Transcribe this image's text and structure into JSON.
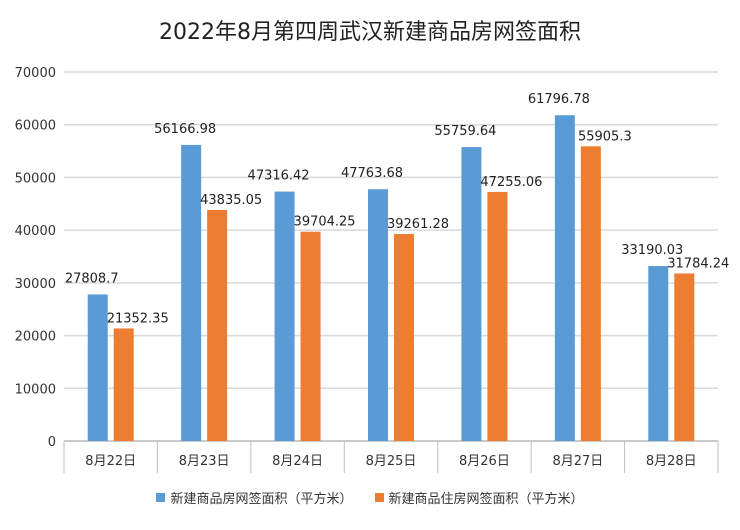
{
  "chart_data": {
    "type": "bar",
    "title": "2022年8月第四周武汉新建商品房网签面积",
    "categories": [
      "8月22日",
      "8月23日",
      "8月24日",
      "8月25日",
      "8月26日",
      "8月27日",
      "8月28日"
    ],
    "series": [
      {
        "name": "新建商品房网签面积（平方米）",
        "color": "#5b9bd5",
        "values": [
          27808.7,
          56166.98,
          47316.42,
          47763.68,
          55759.64,
          61796.78,
          33190.03
        ],
        "labels": [
          "27808.7",
          "56166.98",
          "47316.42",
          "47763.68",
          "55759.64",
          "61796.78",
          "33190.03"
        ]
      },
      {
        "name": "新建商品住房网签面积（平方米）",
        "color": "#ed7d31",
        "values": [
          21352.35,
          43835.05,
          39704.25,
          39261.28,
          47255.06,
          55905.3,
          31784.24
        ],
        "labels": [
          "21352.35",
          "43835.05",
          "39704.25",
          "39261.28",
          "47255.06",
          "55905.3",
          "31784.24"
        ]
      }
    ],
    "yticks": [
      "0",
      "10000",
      "20000",
      "30000",
      "40000",
      "50000",
      "60000",
      "70000"
    ],
    "ylim": [
      0,
      70000
    ],
    "grid": true,
    "legend": "bottom"
  }
}
